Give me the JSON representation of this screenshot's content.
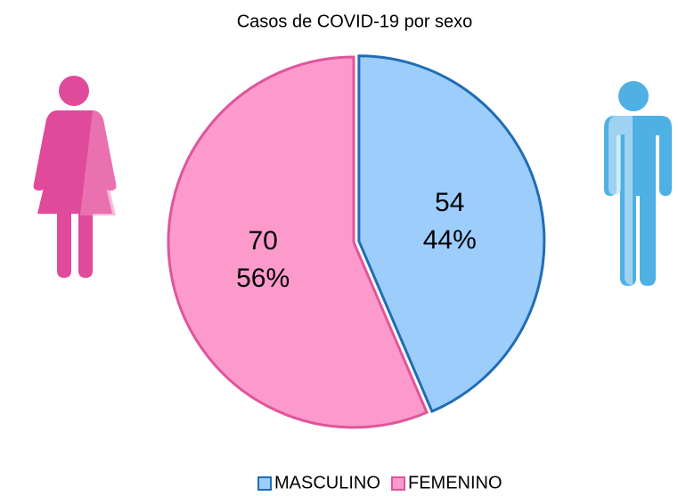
{
  "chart_data": {
    "type": "pie",
    "title": "Casos de COVID-19 por sexo",
    "categories": [
      "MASCULINO",
      "FEMENINO"
    ],
    "values": [
      54,
      70
    ],
    "percent_labels": [
      "44%",
      "56%"
    ],
    "colors": [
      "#9dcdfb",
      "#fb9acb"
    ],
    "edge_colors": [
      "#1f6db4",
      "#e0559c"
    ],
    "legend": "bottom"
  }
}
